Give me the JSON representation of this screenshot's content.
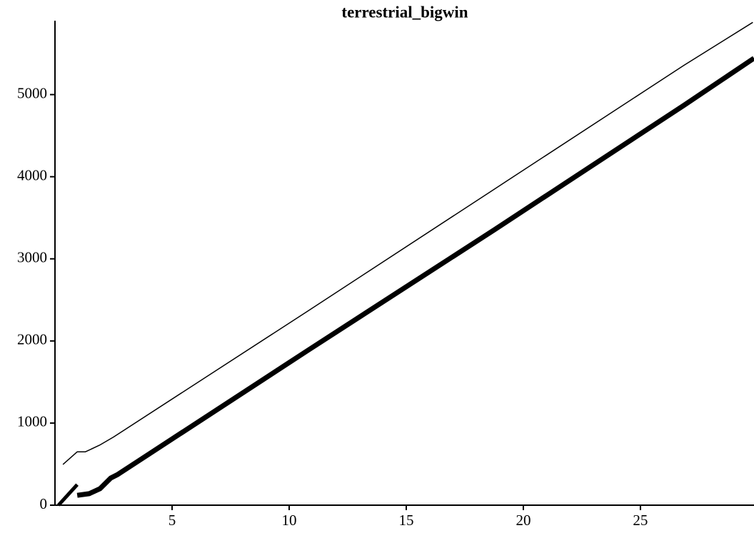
{
  "chart_data": {
    "type": "line",
    "title": "terrestrial_bigwin",
    "series": [
      {
        "color": "#000000",
        "line_width": 1.5,
        "x": [
          0.34,
          0.95,
          1.3,
          1.9,
          2.5,
          10.76,
          18.78,
          26.86,
          29.8
        ],
        "values": [
          496,
          650,
          650,
          730,
          830,
          2357,
          3852,
          5357,
          5880
        ]
      },
      {
        "color": "#000000",
        "line_width": 5,
        "x": [
          0.15,
          0.95
        ],
        "values": [
          0,
          250
        ]
      },
      {
        "color": "#000000",
        "line_width": 7,
        "x": [
          0.95,
          1.46,
          1.92,
          2.38,
          2.68,
          10.76,
          18.78,
          26.86,
          29.85
        ],
        "values": [
          120,
          140,
          200,
          330,
          374,
          1878,
          3357,
          4870,
          5443
        ]
      }
    ],
    "xlim": [
      0,
      29.85
    ],
    "ylim": [
      0,
      5900
    ],
    "xticks": [
      5,
      10,
      15,
      20,
      25
    ],
    "yticks": [
      0,
      1000,
      2000,
      3000,
      4000,
      5000
    ],
    "grid": false
  }
}
